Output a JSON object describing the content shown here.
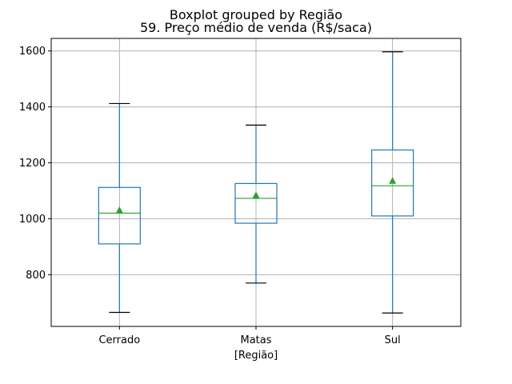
{
  "chart_data": {
    "type": "boxplot",
    "suptitle": "Boxplot grouped by Região",
    "title": "59. Preço médio de venda (R$/saca)",
    "xlabel": "[Região]",
    "ylabel": "",
    "categories": [
      "Cerrado",
      "Matas",
      "Sul"
    ],
    "ylim": [
      615,
      1645
    ],
    "yticks": [
      800,
      1000,
      1200,
      1400,
      1600
    ],
    "grid": true,
    "boxes": [
      {
        "category": "Cerrado",
        "whisker_low": 665,
        "q1": 910,
        "median": 1020,
        "q3": 1112,
        "whisker_high": 1412,
        "mean": 1030
      },
      {
        "category": "Matas",
        "whisker_low": 770,
        "q1": 984,
        "median": 1073,
        "q3": 1126,
        "whisker_high": 1335,
        "mean": 1083
      },
      {
        "category": "Sul",
        "whisker_low": 663,
        "q1": 1010,
        "median": 1118,
        "q3": 1246,
        "whisker_high": 1597,
        "mean": 1135
      }
    ],
    "colors": {
      "box": "#1f77b4",
      "median": "#2ca02c",
      "mean_marker": "#2ca02c",
      "whisker_cap": "#000000",
      "grid": "#b0b0b0"
    }
  }
}
